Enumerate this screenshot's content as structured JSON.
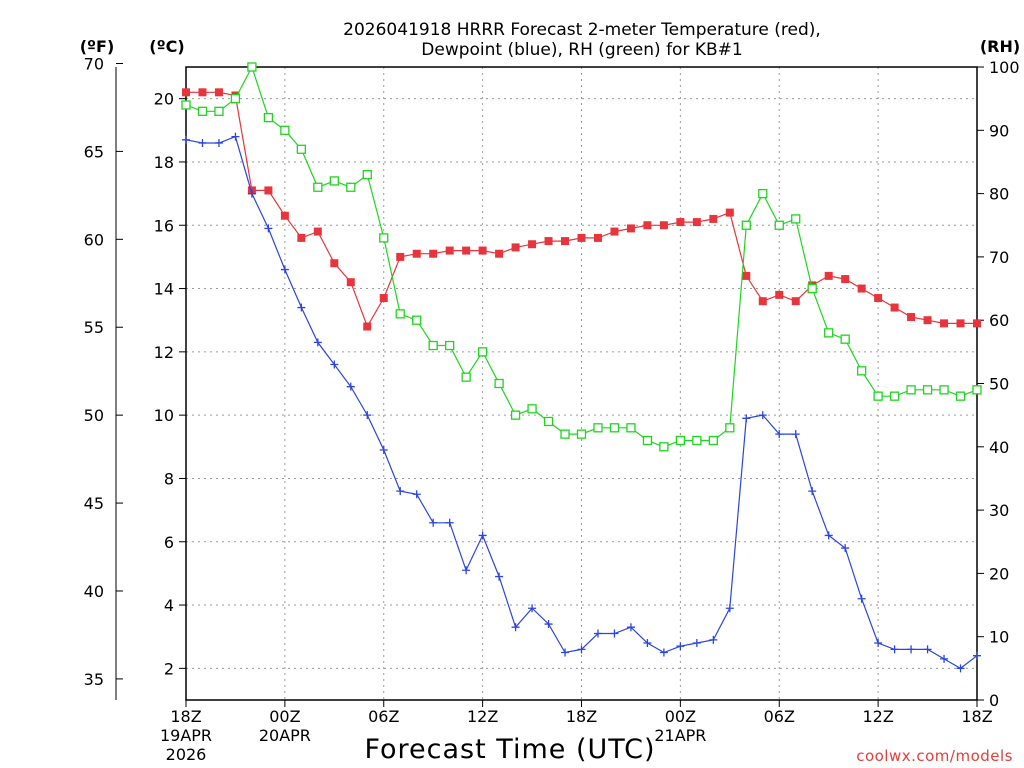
{
  "chart_data": {
    "type": "line",
    "title_line1": "2026041918 HRRR Forecast 2-meter Temperature (red),",
    "title_line2": "Dewpoint (blue), RH (green) for KB#1",
    "xlabel": "Forecast Time (UTC)",
    "watermark": "coolwx.com/models",
    "left_unit_f": "(ºF)",
    "left_unit_c": "(ºC)",
    "right_unit": "(RH)",
    "x_range_hours": [
      0,
      48
    ],
    "x_ticks": [
      {
        "hour": 0,
        "label": "18Z",
        "date": "19APR",
        "year": "2026"
      },
      {
        "hour": 6,
        "label": "00Z",
        "date": "20APR",
        "year": ""
      },
      {
        "hour": 12,
        "label": "06Z",
        "date": "",
        "year": ""
      },
      {
        "hour": 18,
        "label": "12Z",
        "date": "",
        "year": ""
      },
      {
        "hour": 24,
        "label": "18Z",
        "date": "",
        "year": ""
      },
      {
        "hour": 30,
        "label": "00Z",
        "date": "21APR",
        "year": ""
      },
      {
        "hour": 36,
        "label": "06Z",
        "date": "",
        "year": ""
      },
      {
        "hour": 42,
        "label": "12Z",
        "date": "",
        "year": ""
      },
      {
        "hour": 48,
        "label": "18Z",
        "date": "",
        "year": ""
      }
    ],
    "celsius_axis": {
      "range": [
        1,
        21
      ],
      "ticks": [
        2,
        4,
        6,
        8,
        10,
        12,
        14,
        16,
        18,
        20
      ]
    },
    "fahrenheit_axis": {
      "ticks": [
        35,
        40,
        45,
        50,
        55,
        60,
        65,
        70
      ]
    },
    "rh_axis": {
      "range": [
        0,
        100
      ],
      "ticks": [
        0,
        10,
        20,
        30,
        40,
        50,
        60,
        70,
        80,
        90,
        100
      ]
    },
    "series": [
      {
        "name": "Temperature",
        "unit": "C",
        "color": "#e8343c",
        "marker": "square-filled",
        "values": [
          20.2,
          20.2,
          20.2,
          20.1,
          17.1,
          17.1,
          16.3,
          15.6,
          15.8,
          14.8,
          14.2,
          12.8,
          13.7,
          15.0,
          15.1,
          15.1,
          15.2,
          15.2,
          15.2,
          15.1,
          15.3,
          15.4,
          15.5,
          15.5,
          15.6,
          15.6,
          15.8,
          15.9,
          16.0,
          16.0,
          16.1,
          16.1,
          16.2,
          16.4,
          14.4,
          13.6,
          13.8,
          13.6,
          14.1,
          14.4,
          14.3,
          14.0,
          13.7,
          13.4,
          13.1,
          13.0,
          12.9,
          12.9,
          12.9
        ]
      },
      {
        "name": "Dewpoint",
        "unit": "C",
        "color": "#2b45e0",
        "marker": "plus",
        "values": [
          18.7,
          18.6,
          18.6,
          18.8,
          17.0,
          15.9,
          14.6,
          13.4,
          12.3,
          11.6,
          10.9,
          10.0,
          8.9,
          7.6,
          7.5,
          6.6,
          6.6,
          5.1,
          6.2,
          4.9,
          3.3,
          3.9,
          3.4,
          2.5,
          2.6,
          3.1,
          3.1,
          3.3,
          2.8,
          2.5,
          2.7,
          2.8,
          2.9,
          3.9,
          9.9,
          10.0,
          9.4,
          9.4,
          7.6,
          6.2,
          5.8,
          4.2,
          2.8,
          2.6,
          2.6,
          2.6,
          2.3,
          2.0,
          2.4
        ]
      },
      {
        "name": "RH",
        "unit": "%",
        "color": "#1ed61e",
        "marker": "square-open",
        "values": [
          94,
          93,
          93,
          95,
          100,
          92,
          90,
          87,
          81,
          82,
          81,
          83,
          73,
          61,
          60,
          56,
          56,
          51,
          55,
          50,
          45,
          46,
          44,
          42,
          42,
          43,
          43,
          43,
          41,
          40,
          41,
          41,
          41,
          43,
          75,
          80,
          75,
          76,
          65,
          58,
          57,
          52,
          48,
          48,
          49,
          49,
          49,
          48,
          49
        ]
      }
    ]
  }
}
